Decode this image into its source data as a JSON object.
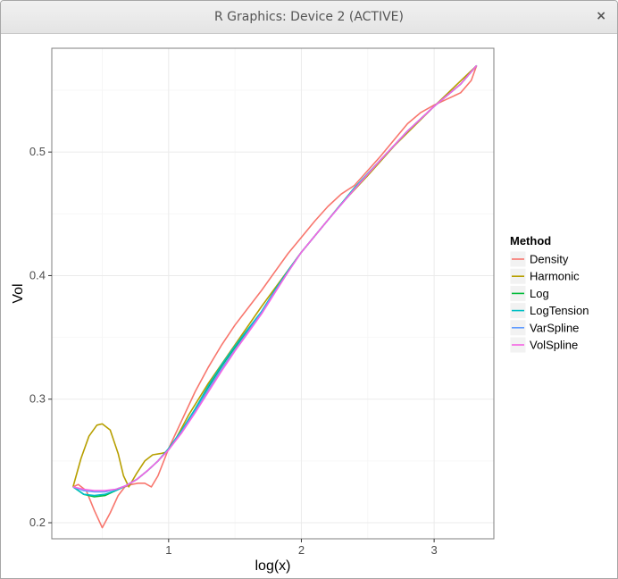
{
  "window": {
    "title": "R Graphics: Device 2 (ACTIVE)",
    "close_glyph": "×"
  },
  "colors": {
    "panel_border": "#7f7f7f",
    "grid_major": "#ebebeb",
    "grid_minor": "#f5f5f5"
  },
  "chart_data": {
    "type": "line",
    "xlabel": "log(x)",
    "ylabel": "Vol",
    "xlim": [
      0.12,
      3.45
    ],
    "ylim": [
      0.187,
      0.584
    ],
    "xticks": [
      1,
      2,
      3
    ],
    "yticks": [
      0.2,
      0.3,
      0.4,
      0.5
    ],
    "grid": true,
    "legend": {
      "title": "Method",
      "position": "right"
    },
    "series": [
      {
        "name": "Density",
        "color": "#F8766D",
        "x": [
          0.28,
          0.32,
          0.38,
          0.44,
          0.5,
          0.56,
          0.62,
          0.67,
          0.72,
          0.77,
          0.82,
          0.87,
          0.92,
          1.0,
          1.1,
          1.2,
          1.3,
          1.4,
          1.5,
          1.6,
          1.7,
          1.8,
          1.9,
          2.0,
          2.1,
          2.2,
          2.3,
          2.4,
          2.5,
          2.6,
          2.7,
          2.8,
          2.9,
          3.0,
          3.1,
          3.2,
          3.28,
          3.32
        ],
        "y": [
          0.229,
          0.231,
          0.226,
          0.21,
          0.196,
          0.208,
          0.222,
          0.229,
          0.231,
          0.232,
          0.232,
          0.229,
          0.238,
          0.26,
          0.283,
          0.306,
          0.326,
          0.344,
          0.36,
          0.374,
          0.388,
          0.403,
          0.418,
          0.431,
          0.444,
          0.456,
          0.466,
          0.473,
          0.485,
          0.497,
          0.51,
          0.523,
          0.532,
          0.538,
          0.543,
          0.548,
          0.558,
          0.57
        ]
      },
      {
        "name": "Harmonic",
        "color": "#B79F00",
        "x": [
          0.28,
          0.34,
          0.4,
          0.46,
          0.5,
          0.56,
          0.62,
          0.66,
          0.7,
          0.76,
          0.82,
          0.88,
          0.94,
          0.98,
          1.05,
          1.15,
          1.3,
          1.5,
          1.7,
          2.0,
          2.3,
          2.5,
          2.7,
          3.0,
          3.32
        ],
        "y": [
          0.229,
          0.252,
          0.27,
          0.279,
          0.28,
          0.275,
          0.256,
          0.238,
          0.229,
          0.24,
          0.25,
          0.255,
          0.256,
          0.257,
          0.267,
          0.287,
          0.313,
          0.344,
          0.375,
          0.419,
          0.458,
          0.481,
          0.505,
          0.537,
          0.57
        ]
      },
      {
        "name": "Log",
        "color": "#00BA38",
        "x": [
          0.28,
          0.36,
          0.44,
          0.52,
          0.6,
          0.68,
          0.76,
          0.84,
          0.92,
          1.0,
          1.1,
          1.2,
          1.3,
          1.4,
          1.5,
          1.6,
          1.7,
          1.8,
          1.9,
          2.0,
          2.2,
          2.4,
          2.6,
          2.8,
          3.0,
          3.2,
          3.32
        ],
        "y": [
          0.229,
          0.223,
          0.221,
          0.222,
          0.226,
          0.23,
          0.235,
          0.242,
          0.25,
          0.26,
          0.275,
          0.292,
          0.31,
          0.327,
          0.342,
          0.356,
          0.37,
          0.388,
          0.404,
          0.419,
          0.445,
          0.471,
          0.494,
          0.517,
          0.537,
          0.555,
          0.57
        ]
      },
      {
        "name": "LogTension",
        "color": "#00BFC4",
        "x": [
          0.28,
          0.36,
          0.44,
          0.52,
          0.6,
          0.68,
          0.76,
          0.84,
          0.92,
          1.0,
          1.1,
          1.2,
          1.3,
          1.4,
          1.5,
          1.6,
          1.7,
          1.8,
          1.9,
          2.0,
          2.2,
          2.4,
          2.6,
          2.8,
          3.0,
          3.2,
          3.32
        ],
        "y": [
          0.229,
          0.223,
          0.222,
          0.223,
          0.226,
          0.23,
          0.235,
          0.242,
          0.25,
          0.26,
          0.275,
          0.292,
          0.311,
          0.328,
          0.343,
          0.357,
          0.371,
          0.388,
          0.404,
          0.419,
          0.445,
          0.471,
          0.494,
          0.517,
          0.537,
          0.555,
          0.57
        ]
      },
      {
        "name": "VarSpline",
        "color": "#619CFF",
        "x": [
          0.28,
          0.36,
          0.44,
          0.52,
          0.6,
          0.68,
          0.76,
          0.84,
          0.92,
          1.0,
          1.1,
          1.2,
          1.3,
          1.4,
          1.5,
          1.6,
          1.7,
          1.8,
          1.9,
          2.0,
          2.2,
          2.4,
          2.6,
          2.8,
          3.0,
          3.2,
          3.32
        ],
        "y": [
          0.229,
          0.226,
          0.225,
          0.225,
          0.227,
          0.23,
          0.235,
          0.242,
          0.25,
          0.259,
          0.274,
          0.29,
          0.308,
          0.325,
          0.34,
          0.355,
          0.37,
          0.387,
          0.403,
          0.419,
          0.445,
          0.47,
          0.494,
          0.517,
          0.537,
          0.555,
          0.57
        ]
      },
      {
        "name": "VolSpline",
        "color": "#F564E3",
        "x": [
          0.28,
          0.36,
          0.44,
          0.52,
          0.6,
          0.68,
          0.76,
          0.84,
          0.92,
          1.0,
          1.1,
          1.2,
          1.3,
          1.4,
          1.5,
          1.6,
          1.7,
          1.8,
          1.9,
          2.0,
          2.2,
          2.4,
          2.6,
          2.8,
          3.0,
          3.2,
          3.32
        ],
        "y": [
          0.229,
          0.227,
          0.226,
          0.226,
          0.227,
          0.23,
          0.235,
          0.242,
          0.25,
          0.259,
          0.273,
          0.289,
          0.306,
          0.323,
          0.339,
          0.354,
          0.369,
          0.386,
          0.403,
          0.419,
          0.445,
          0.47,
          0.494,
          0.517,
          0.537,
          0.555,
          0.57
        ]
      }
    ]
  }
}
